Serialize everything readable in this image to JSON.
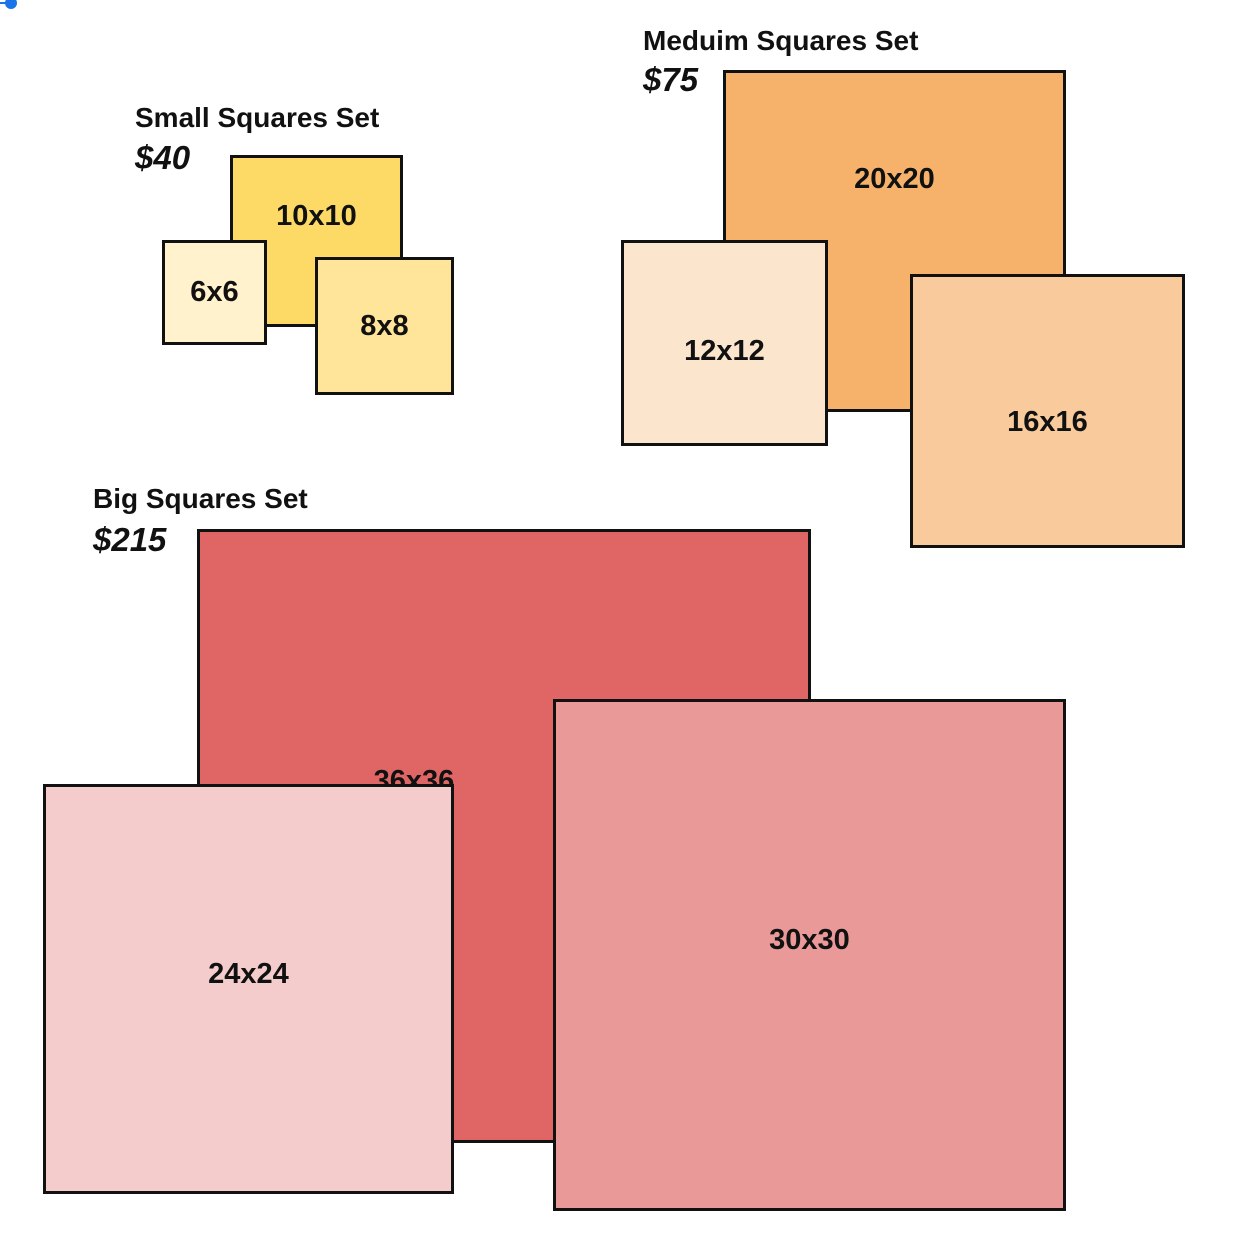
{
  "sets": {
    "small": {
      "title": "Small Squares Set",
      "price": "$40",
      "squares": [
        {
          "label": "10x10",
          "color": "#fdd966"
        },
        {
          "label": "6x6",
          "color": "#fff2cc"
        },
        {
          "label": "8x8",
          "color": "#ffe599"
        }
      ]
    },
    "medium": {
      "title": "Meduim Squares Set",
      "price": "$75",
      "squares": [
        {
          "label": "20x20",
          "color": "#f6b26b"
        },
        {
          "label": "12x12",
          "color": "#fce5cd"
        },
        {
          "label": "16x16",
          "color": "#f9cb9c"
        }
      ]
    },
    "big": {
      "title": "Big Squares Set",
      "price": "$215",
      "squares": [
        {
          "label": "36x36",
          "color": "#e06666"
        },
        {
          "label": "24x24",
          "color": "#f4cccc"
        },
        {
          "label": "30x30",
          "color": "#ea9999"
        }
      ]
    }
  }
}
